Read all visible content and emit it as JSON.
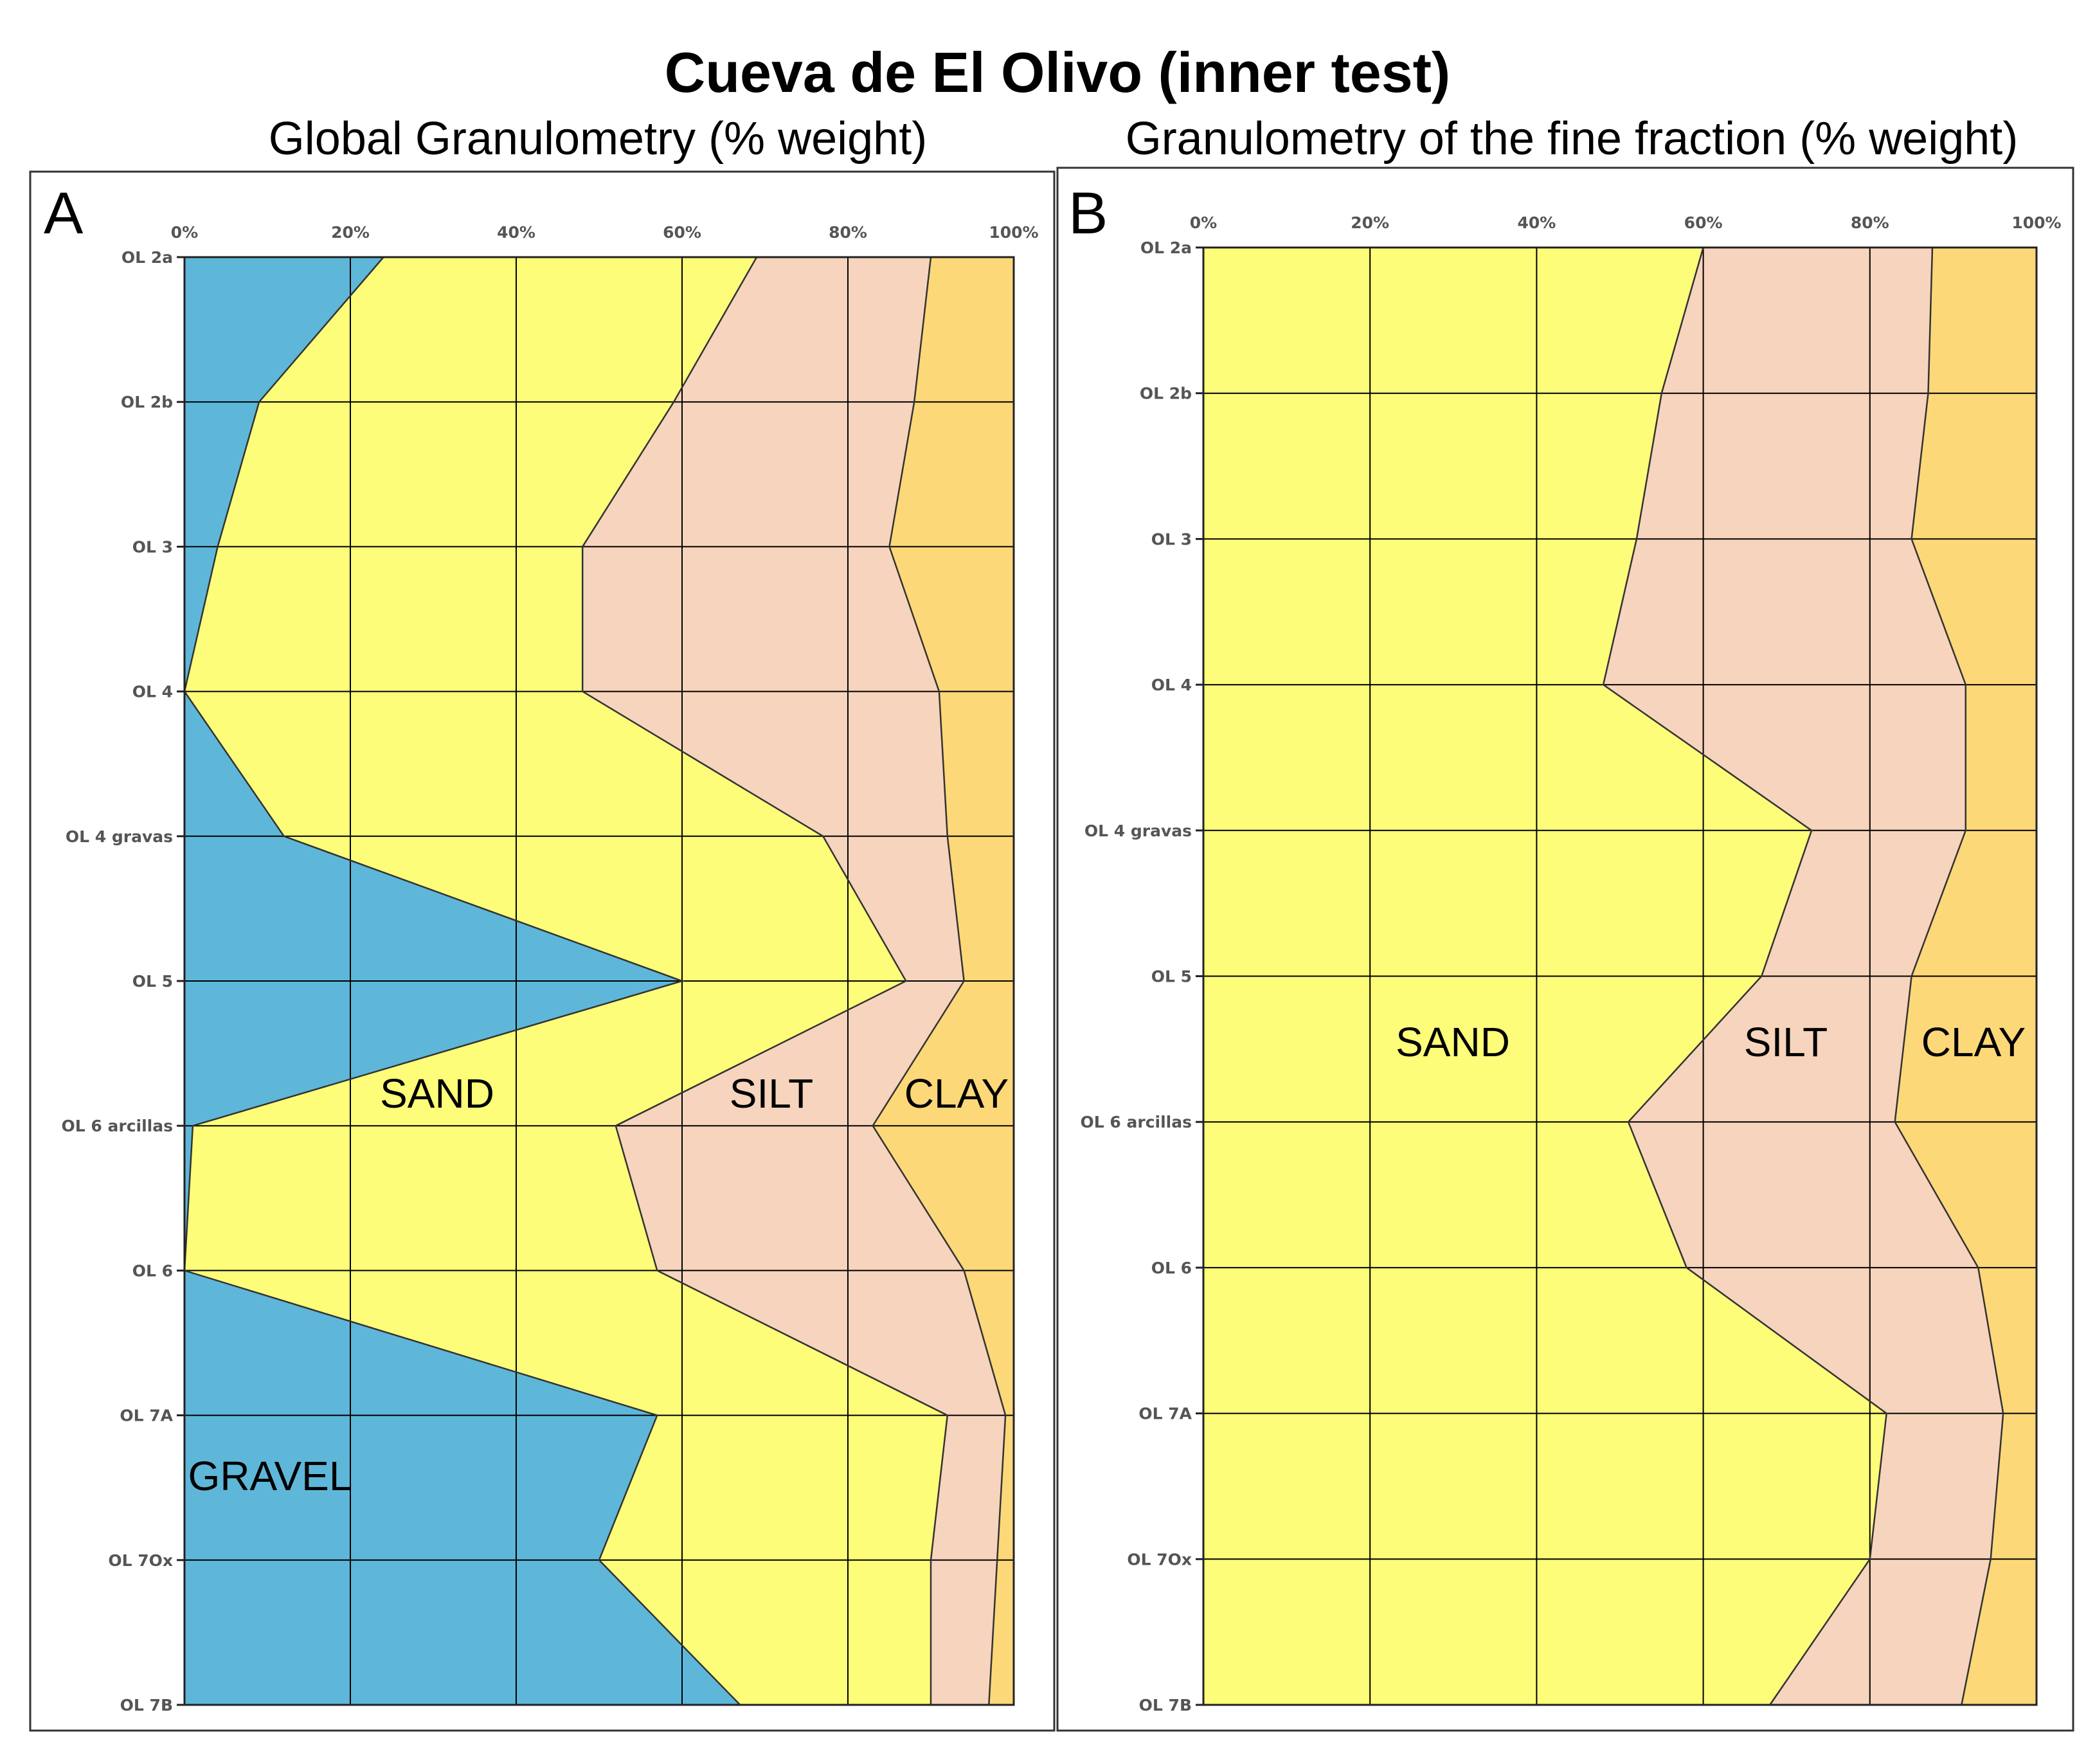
{
  "figure": {
    "title": "Cueva de El Olivo (inner test)"
  },
  "colors": {
    "gravel": "#5eb7d9",
    "sand": "#fdfd7a",
    "silt": "#f7d4bd",
    "clay": "#fdd879",
    "grid": "#000000"
  },
  "chart_data": [
    {
      "type": "area",
      "panel_label": "A",
      "title": "Global Granulometry (% weight)",
      "orientation": "horizontal-stacked",
      "x_ticks": [
        "0%",
        "20%",
        "40%",
        "60%",
        "80%",
        "100%"
      ],
      "xlim": [
        0,
        100
      ],
      "categories": [
        "OL 2a",
        "OL 2b",
        "OL 3",
        "OL 4",
        "OL 4 gravas",
        "OL 5",
        "OL 6 arcillas",
        "OL 6",
        "OL 7A",
        "OL 7Ox",
        "OL 7B"
      ],
      "series": [
        {
          "name": "GRAVEL",
          "values": [
            24,
            9,
            4,
            0,
            12,
            60,
            1,
            0,
            57,
            50,
            67
          ]
        },
        {
          "name": "SAND",
          "values": [
            45,
            50,
            44,
            48,
            65,
            27,
            51,
            57,
            35,
            40,
            23
          ]
        },
        {
          "name": "SILT",
          "values": [
            21,
            29,
            37,
            43,
            15,
            7,
            31,
            37,
            7,
            8,
            7
          ]
        },
        {
          "name": "CLAY",
          "values": [
            10,
            12,
            15,
            9,
            8,
            6,
            17,
            6,
            1,
            2,
            3
          ]
        }
      ],
      "grid": true
    },
    {
      "type": "area",
      "panel_label": "B",
      "title": "Granulometry of the fine fraction (% weight)",
      "orientation": "horizontal-stacked",
      "x_ticks": [
        "0%",
        "20%",
        "40%",
        "60%",
        "80%",
        "100%"
      ],
      "xlim": [
        0,
        100
      ],
      "categories": [
        "OL 2a",
        "OL 2b",
        "OL 3",
        "OL 4",
        "OL 4 gravas",
        "OL 5",
        "OL 6 arcillas",
        "OL 6",
        "OL 7A",
        "OL 7Ox",
        "OL 7B"
      ],
      "series": [
        {
          "name": "SAND",
          "values": [
            60,
            55,
            52,
            48,
            73,
            67,
            51,
            58,
            82,
            80,
            68
          ]
        },
        {
          "name": "SILT",
          "values": [
            27.5,
            32,
            33,
            43.5,
            18.5,
            18,
            32,
            35,
            14,
            14.5,
            23
          ]
        },
        {
          "name": "CLAY",
          "values": [
            12.5,
            13,
            15,
            8.5,
            8.5,
            15,
            17,
            7,
            4,
            5.5,
            9
          ]
        }
      ],
      "grid": true
    }
  ]
}
